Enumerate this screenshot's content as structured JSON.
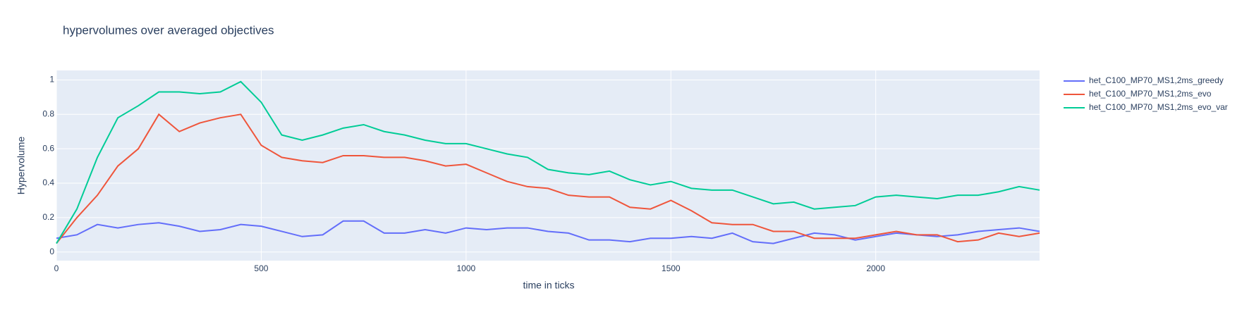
{
  "chart_data": {
    "type": "line",
    "title": "hypervolumes over averaged objectives",
    "x_label": "time in ticks",
    "y_label": "Hypervolume",
    "x": [
      0,
      50,
      100,
      150,
      200,
      250,
      300,
      350,
      400,
      450,
      500,
      550,
      600,
      650,
      700,
      750,
      800,
      850,
      900,
      950,
      1000,
      1050,
      1100,
      1150,
      1200,
      1250,
      1300,
      1350,
      1400,
      1450,
      1500,
      1550,
      1600,
      1650,
      1700,
      1750,
      1800,
      1850,
      1900,
      1950,
      2000,
      2050,
      2100,
      2150,
      2200,
      2250,
      2300,
      2350,
      2400
    ],
    "series": [
      {
        "name": "het_C100_MP70_MS1,2ms_greedy",
        "color": "#636efa",
        "values": [
          0.08,
          0.1,
          0.16,
          0.14,
          0.16,
          0.17,
          0.15,
          0.12,
          0.13,
          0.16,
          0.15,
          0.12,
          0.09,
          0.1,
          0.18,
          0.18,
          0.11,
          0.11,
          0.13,
          0.11,
          0.14,
          0.13,
          0.14,
          0.14,
          0.12,
          0.11,
          0.07,
          0.07,
          0.06,
          0.08,
          0.08,
          0.09,
          0.08,
          0.11,
          0.06,
          0.05,
          0.08,
          0.11,
          0.1,
          0.07,
          0.09,
          0.11,
          0.1,
          0.09,
          0.1,
          0.12,
          0.13,
          0.14,
          0.12
        ]
      },
      {
        "name": "het_C100_MP70_MS1,2ms_evo",
        "color": "#ef553b",
        "values": [
          0.05,
          0.2,
          0.33,
          0.5,
          0.6,
          0.8,
          0.7,
          0.75,
          0.78,
          0.8,
          0.62,
          0.55,
          0.53,
          0.52,
          0.56,
          0.56,
          0.55,
          0.55,
          0.53,
          0.5,
          0.51,
          0.46,
          0.41,
          0.38,
          0.37,
          0.33,
          0.32,
          0.32,
          0.26,
          0.25,
          0.3,
          0.24,
          0.17,
          0.16,
          0.16,
          0.12,
          0.12,
          0.08,
          0.08,
          0.08,
          0.1,
          0.12,
          0.1,
          0.1,
          0.06,
          0.07,
          0.11,
          0.09,
          0.11
        ]
      },
      {
        "name": "het_C100_MP70_MS1,2ms_evo_var",
        "color": "#00cc96",
        "values": [
          0.05,
          0.25,
          0.55,
          0.78,
          0.85,
          0.93,
          0.93,
          0.92,
          0.93,
          0.99,
          0.87,
          0.68,
          0.65,
          0.68,
          0.72,
          0.74,
          0.7,
          0.68,
          0.65,
          0.63,
          0.63,
          0.6,
          0.57,
          0.55,
          0.48,
          0.46,
          0.45,
          0.47,
          0.42,
          0.39,
          0.41,
          0.37,
          0.36,
          0.36,
          0.32,
          0.28,
          0.29,
          0.25,
          0.26,
          0.27,
          0.32,
          0.33,
          0.32,
          0.31,
          0.33,
          0.33,
          0.35,
          0.38,
          0.36
        ]
      }
    ],
    "xlim": [
      0,
      2400
    ],
    "ylim": [
      -0.05,
      1.055
    ],
    "xticks": [
      0,
      500,
      1000,
      1500,
      2000
    ],
    "yticks": [
      0,
      0.2,
      0.4,
      0.6,
      0.8,
      1
    ],
    "grid": true,
    "legend": "right"
  }
}
